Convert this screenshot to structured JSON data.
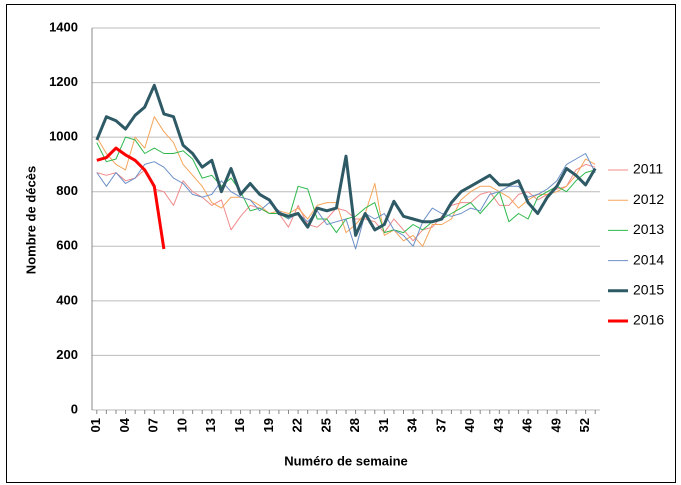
{
  "chart_data": {
    "type": "line",
    "y_label": "Nombre de décès",
    "x_label": "Numéro de semaine",
    "categories": [
      "01",
      null,
      null,
      "04",
      null,
      null,
      "07",
      null,
      null,
      "10",
      null,
      null,
      "13",
      null,
      null,
      "16",
      null,
      null,
      "19",
      null,
      null,
      "22",
      null,
      null,
      "25",
      null,
      null,
      "28",
      null,
      null,
      "31",
      null,
      null,
      "34",
      null,
      null,
      "37",
      null,
      null,
      "40",
      null,
      null,
      "43",
      null,
      null,
      "46",
      null,
      null,
      "49",
      null,
      null,
      "52",
      null
    ],
    "ylim": [
      0,
      1400
    ],
    "yticks": [
      0,
      200,
      400,
      600,
      800,
      1000,
      1200,
      1400
    ],
    "grid": true,
    "legend": "right",
    "series": [
      {
        "name": "2011",
        "color": "#f08a8a",
        "width": 1,
        "values": [
          870,
          860,
          870,
          840,
          850,
          880,
          810,
          800,
          750,
          840,
          800,
          780,
          750,
          770,
          660,
          710,
          750,
          740,
          720,
          720,
          670,
          750,
          680,
          670,
          700,
          740,
          730,
          700,
          700,
          690,
          650,
          700,
          660,
          620,
          660,
          670,
          710,
          750,
          760,
          760,
          790,
          800,
          750,
          750,
          790,
          800,
          770,
          790,
          810,
          820,
          880,
          900,
          890
        ]
      },
      {
        "name": "2012",
        "color": "#f5a55a",
        "width": 1,
        "values": [
          1000,
          940,
          900,
          880,
          1000,
          960,
          1075,
          1020,
          980,
          900,
          860,
          820,
          760,
          740,
          780,
          780,
          770,
          750,
          720,
          730,
          720,
          740,
          700,
          750,
          760,
          760,
          650,
          680,
          720,
          830,
          640,
          660,
          620,
          640,
          600,
          680,
          680,
          700,
          770,
          800,
          820,
          820,
          800,
          780,
          740,
          770,
          790,
          790,
          800,
          820,
          860,
          920,
          900
        ]
      },
      {
        "name": "2013",
        "color": "#2eb84c",
        "width": 1,
        "values": [
          980,
          910,
          920,
          1000,
          990,
          940,
          960,
          940,
          940,
          950,
          920,
          850,
          860,
          820,
          850,
          800,
          730,
          740,
          720,
          720,
          700,
          820,
          810,
          700,
          700,
          650,
          700,
          710,
          740,
          760,
          650,
          660,
          650,
          680,
          660,
          690,
          700,
          720,
          740,
          760,
          720,
          760,
          800,
          690,
          720,
          700,
          780,
          800,
          820,
          800,
          840,
          870,
          880
        ]
      },
      {
        "name": "2014",
        "color": "#6b8fc7",
        "width": 1,
        "values": [
          870,
          820,
          870,
          830,
          850,
          900,
          910,
          890,
          850,
          830,
          790,
          780,
          790,
          840,
          800,
          780,
          770,
          730,
          760,
          730,
          700,
          720,
          690,
          730,
          680,
          690,
          700,
          590,
          720,
          700,
          720,
          660,
          640,
          600,
          690,
          740,
          720,
          710,
          720,
          740,
          730,
          790,
          800,
          820,
          820,
          780,
          790,
          810,
          840,
          900,
          920,
          940,
          870
        ]
      },
      {
        "name": "2015",
        "color": "#2e5a66",
        "width": 3,
        "values": [
          990,
          1075,
          1060,
          1030,
          1080,
          1110,
          1190,
          1085,
          1075,
          970,
          940,
          890,
          915,
          800,
          885,
          790,
          830,
          790,
          770,
          720,
          710,
          720,
          670,
          740,
          730,
          740,
          930,
          640,
          720,
          660,
          680,
          765,
          710,
          700,
          690,
          690,
          700,
          760,
          800,
          820,
          840,
          860,
          825,
          825,
          840,
          760,
          720,
          780,
          820,
          885,
          860,
          825,
          885
        ]
      },
      {
        "name": "2016",
        "color": "#ff0000",
        "width": 3,
        "values": [
          915,
          925,
          960,
          935,
          915,
          880,
          820,
          590,
          null,
          null,
          null,
          null,
          null,
          null,
          null,
          null,
          null,
          null,
          null,
          null,
          null,
          null,
          null,
          null,
          null,
          null,
          null,
          null,
          null,
          null,
          null,
          null,
          null,
          null,
          null,
          null,
          null,
          null,
          null,
          null,
          null,
          null,
          null,
          null,
          null,
          null,
          null,
          null,
          null,
          null,
          null,
          null,
          null
        ]
      }
    ]
  }
}
